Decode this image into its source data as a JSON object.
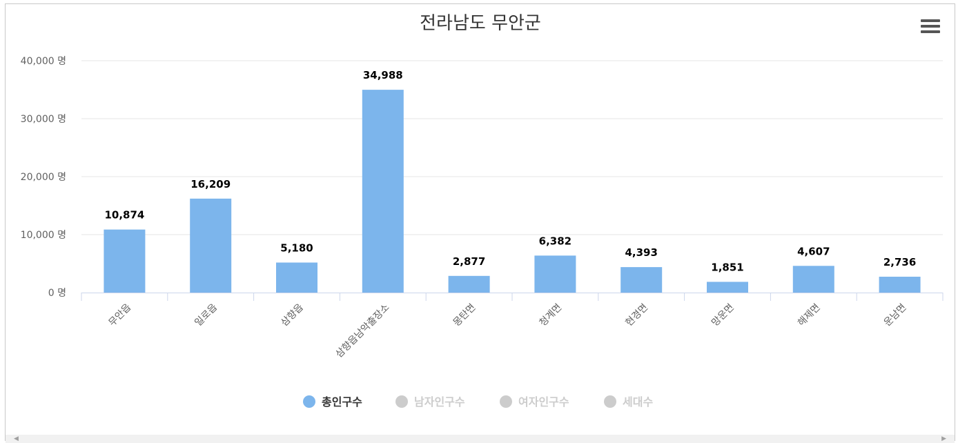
{
  "chart_data": {
    "type": "bar",
    "title": "전라남도 무안군",
    "categories": [
      "무안읍",
      "일로읍",
      "삼향읍",
      "삼향읍남악출장소",
      "몽탄면",
      "청계면",
      "현경면",
      "망운면",
      "해제면",
      "운남면"
    ],
    "series": [
      {
        "name": "총인구수",
        "values": [
          10874,
          16209,
          5180,
          34988,
          2877,
          6382,
          4393,
          1851,
          4607,
          2736
        ],
        "active": true
      },
      {
        "name": "남자인구수",
        "active": false
      },
      {
        "name": "여자인구수",
        "active": false
      },
      {
        "name": "세대수",
        "active": false
      }
    ],
    "data_labels": [
      "10,874",
      "16,209",
      "5,180",
      "34,988",
      "2,877",
      "6,382",
      "4,393",
      "1,851",
      "4,607",
      "2,736"
    ],
    "yaxis": {
      "ticks": [
        0,
        10000,
        20000,
        30000,
        40000
      ],
      "tick_labels": [
        "0 명",
        "10,000 명",
        "20,000 명",
        "30,000 명",
        "40,000 명"
      ],
      "range": [
        0,
        40000
      ]
    },
    "grid": true,
    "legend_position": "bottom-center",
    "colors": {
      "active": "#7cb5ec",
      "inactive": "#cccccc"
    }
  }
}
